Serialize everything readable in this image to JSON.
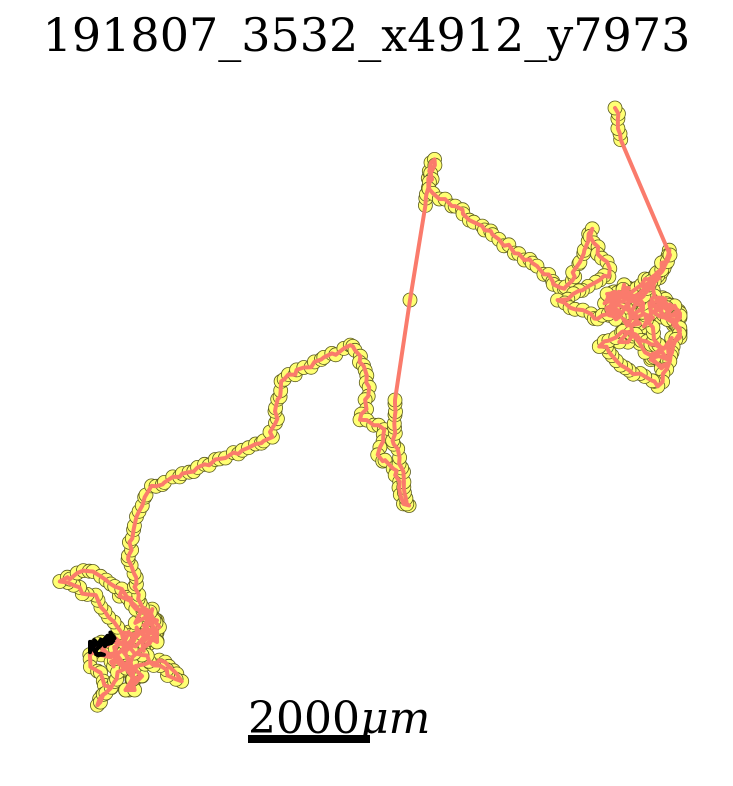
{
  "title": "191807_3532_x4912_y7973",
  "scale_bar": {
    "label_number": "2000",
    "label_unit": "μm"
  },
  "colors": {
    "path": "#fa7b6c",
    "marker_fill": "#ffff73",
    "marker_edge": "#5a5a1e",
    "start_marker": "#000000"
  },
  "chart_data": {
    "type": "scatter",
    "title": "191807_3532_x4912_y7973",
    "xlabel": "",
    "ylabel": "",
    "grid": false,
    "legend": "none",
    "track_summary": {
      "start_cluster": "bottom-left",
      "end_point": "top-right"
    }
  }
}
